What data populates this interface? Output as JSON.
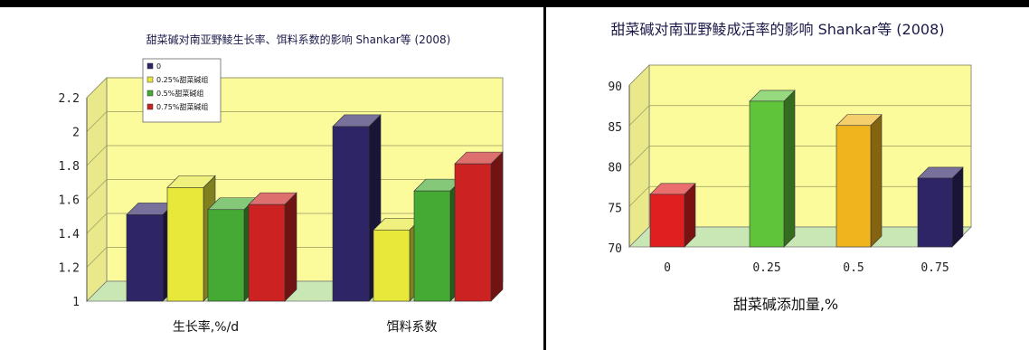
{
  "chart_data": [
    {
      "type": "bar",
      "title": "甜菜碱对南亚野鲮生长率、饵料系数的影响 Shankar等 (2008)",
      "categories": [
        "生长率,%/d",
        "饵料系数"
      ],
      "series": [
        {
          "name": "0",
          "color": "#2d2566",
          "values": [
            1.51,
            2.03
          ]
        },
        {
          "name": "0.25%甜菜碱组",
          "color": "#e8e83a",
          "values": [
            1.67,
            1.42
          ]
        },
        {
          "name": "0.5%甜菜碱组",
          "color": "#44aa33",
          "values": [
            1.54,
            1.65
          ]
        },
        {
          "name": "0.75%甜菜碱组",
          "color": "#cc2222",
          "values": [
            1.57,
            1.81
          ]
        }
      ],
      "yticks": [
        "1",
        "1.2",
        "1.4",
        "1.6",
        "1.8",
        "2",
        "2.2"
      ],
      "ylim": [
        1,
        2.2
      ],
      "legend": "top-left",
      "grid": true
    },
    {
      "type": "bar",
      "title": "甜菜碱对南亚野鲮成活率的影响 Shankar等 (2008)",
      "categories": [
        "0",
        "0.25",
        "0.5",
        "0.75"
      ],
      "values": [
        76.5,
        88,
        85,
        78.5
      ],
      "colors": [
        "#e02020",
        "#5fc43a",
        "#f0b51e",
        "#2d2566"
      ],
      "xlabel": "甜菜碱添加量,%",
      "yticks": [
        "70",
        "75",
        "80",
        "85",
        "90"
      ],
      "ylim": [
        70,
        90
      ],
      "grid": true
    }
  ]
}
